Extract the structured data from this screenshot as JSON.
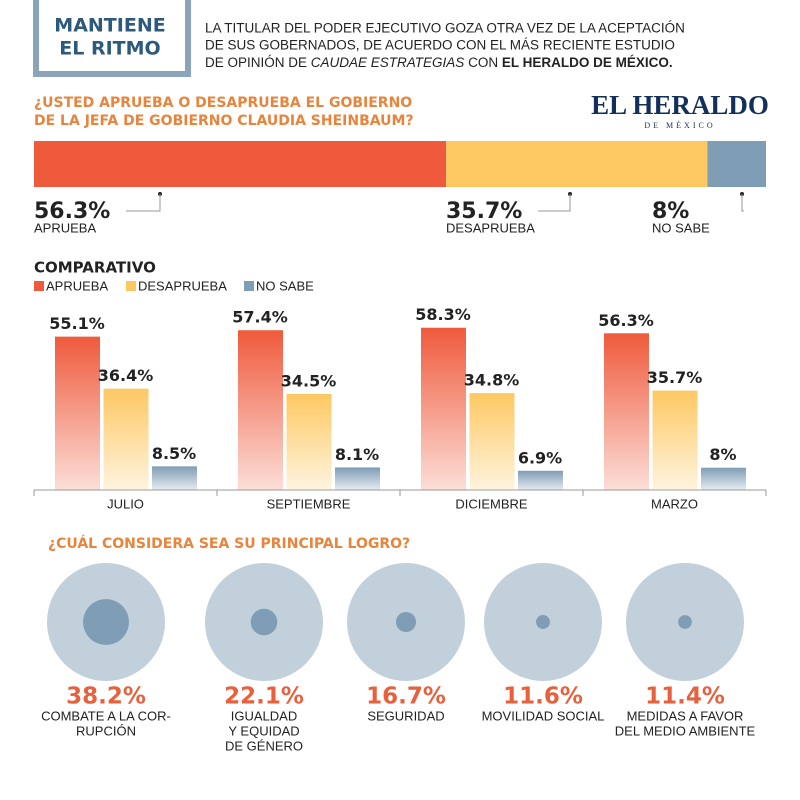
{
  "header": {
    "title_lines": [
      "MANTIENE",
      "EL RITMO"
    ],
    "intro_lines": [
      "LA TITULAR DEL PODER EJECUTIVO GOZA OTRA VEZ DE LA ACEPTACIÓN",
      "DE SUS GOBERNADOS, DE ACUERDO CON EL MÁS RECIENTE ESTUDIO"
    ],
    "intro_last": [
      "DE OPINIÓN DE",
      "CAUDAE ESTRATEGIAS",
      "CON",
      "EL HERALDO DE MÉXICO."
    ]
  },
  "logo": {
    "name": "EL HERALDO",
    "sub": "DE MÉXICO"
  },
  "chart_data": [
    {
      "type": "stacked-bar",
      "title_lines": [
        "¿USTED APRUEBA O DESAPRUEBA EL GOBIERNO",
        "DE LA JEFA DE GOBIERNO CLAUDIA SHEINBAUM?"
      ],
      "xlim": [
        0,
        100
      ],
      "series": [
        {
          "name": "APRUEBA",
          "color": "#ef5a3c",
          "values": [
            56.3
          ],
          "value_labels": [
            "56.3%"
          ]
        },
        {
          "name": "DESAPRUEBA",
          "color": "#fdc862",
          "values": [
            35.7
          ],
          "value_labels": [
            "35.7%"
          ]
        },
        {
          "name": "NO SABE",
          "color": "#7f9db5",
          "values": [
            8
          ],
          "value_labels": [
            "8%"
          ]
        }
      ]
    },
    {
      "type": "bar",
      "title": "COMPARATIVO",
      "categories": [
        "JULIO",
        "SEPTIEMBRE",
        "DICIEMBRE",
        "MARZO"
      ],
      "ylim": [
        0,
        60
      ],
      "series": [
        {
          "name": "APRUEBA",
          "color": "#ef5a3c",
          "values": [
            55.1,
            57.4,
            58.3,
            56.3
          ],
          "value_labels": [
            "55.1%",
            "57.4%",
            "58.3%",
            "56.3%"
          ]
        },
        {
          "name": "DESAPRUEBA",
          "color": "#fdc862",
          "values": [
            36.4,
            34.5,
            34.8,
            35.7
          ],
          "value_labels": [
            "36.4%",
            "34.5%",
            "34.8%",
            "35.7%"
          ]
        },
        {
          "name": "NO SABE",
          "color": "#7f9db5",
          "values": [
            8.5,
            8.1,
            6.9,
            8
          ],
          "value_labels": [
            "8.5%",
            "8.1%",
            "6.9%",
            "8%"
          ]
        }
      ]
    },
    {
      "type": "bubble",
      "title": "¿CUÁL CONSIDERA SEA SU PRINCIPAL LOGRO?",
      "categories": [
        [
          "COMBATE A LA COR-",
          "RUPCIÓN"
        ],
        [
          "IGUALDAD",
          "Y EQUIDAD",
          "DE GÉNERO"
        ],
        [
          "SEGURIDAD"
        ],
        [
          "MOVILIDAD SOCIAL"
        ],
        [
          "MEDIDAS A FAVOR",
          "DEL MEDIO AMBIENTE"
        ]
      ],
      "values": [
        38.2,
        22.1,
        16.7,
        11.6,
        11.4
      ],
      "value_labels": [
        "38.2%",
        "22.1%",
        "16.7%",
        "11.6%",
        "11.4%"
      ],
      "color": "#7f9db5",
      "background_color": "#c2d0dc",
      "value_color": "#e8603c"
    }
  ]
}
